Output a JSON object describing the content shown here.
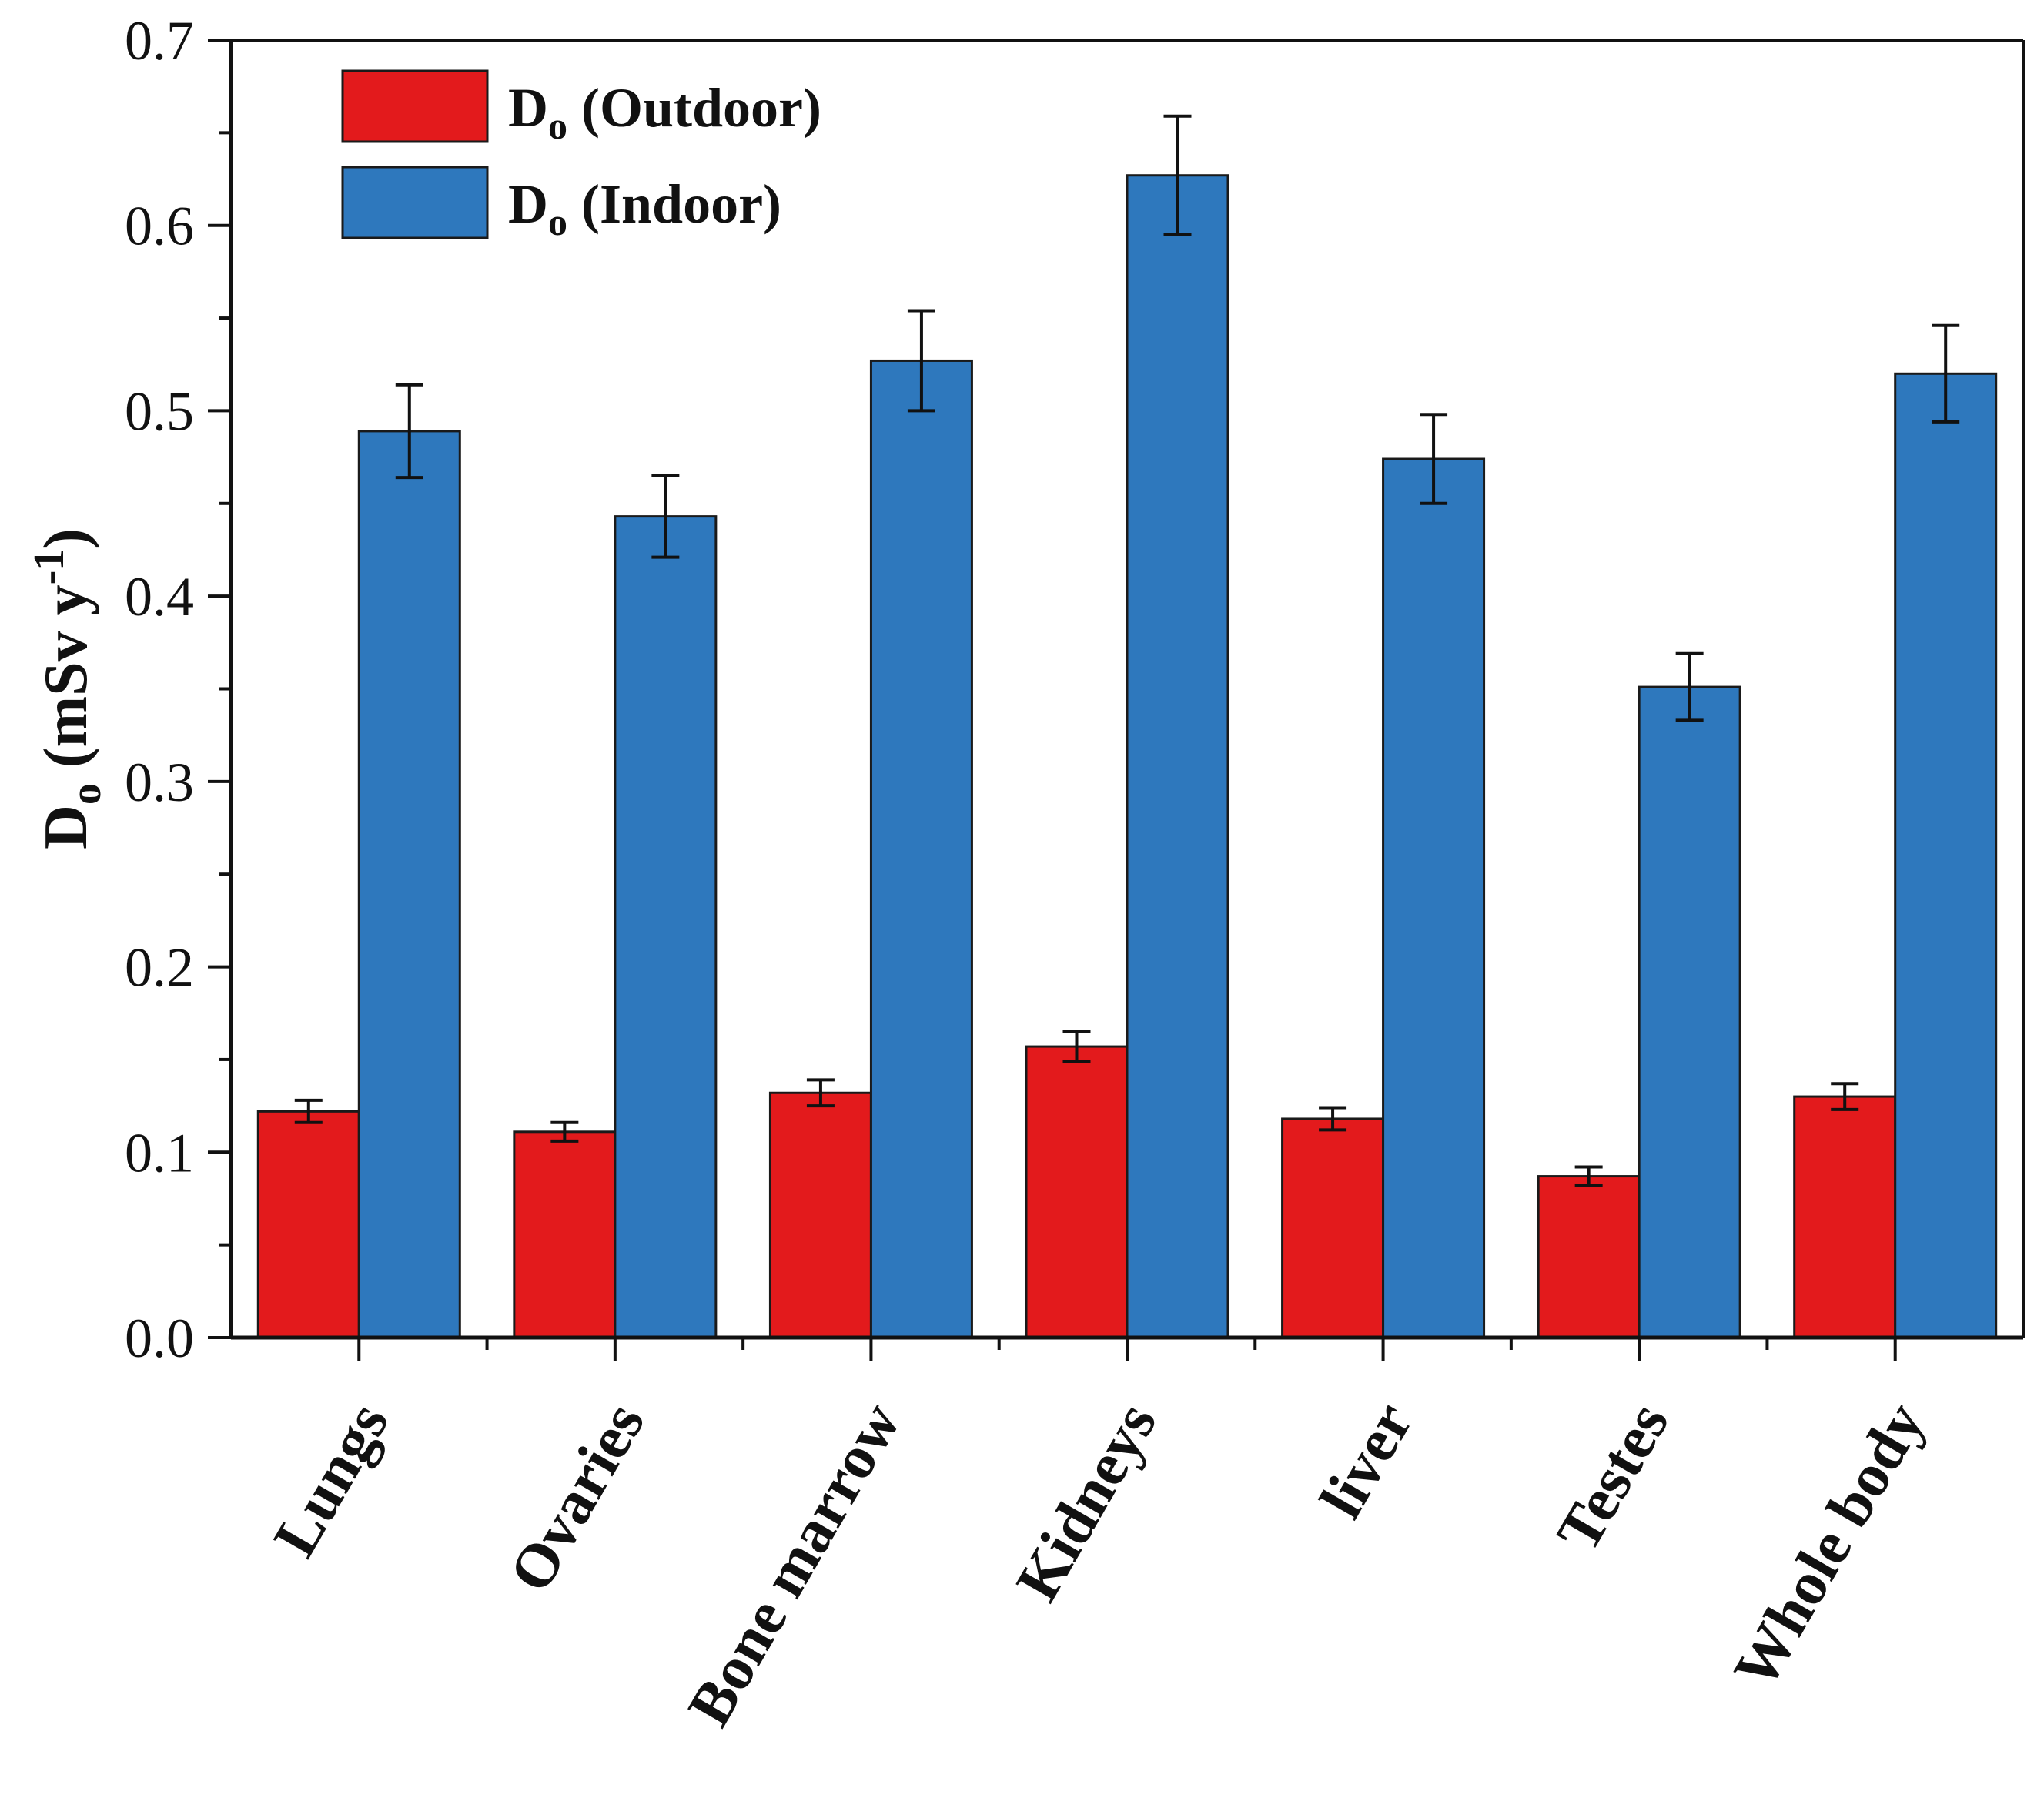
{
  "chart_data": {
    "type": "bar",
    "title": "",
    "categories": [
      "Lungs",
      "Ovaries",
      "Bone marrow",
      "Kidneys",
      "liver",
      "Testes",
      "Whole body"
    ],
    "series": [
      {
        "name": "Do (Outdoor)",
        "legend_main": "D",
        "legend_sub": "o",
        "legend_rest": " (Outdoor)",
        "color": "#e31a1c",
        "values": [
          0.122,
          0.111,
          0.132,
          0.157,
          0.118,
          0.087,
          0.13
        ],
        "errors": [
          0.006,
          0.005,
          0.007,
          0.008,
          0.006,
          0.005,
          0.007
        ]
      },
      {
        "name": "Do (Indoor)",
        "legend_main": "D",
        "legend_sub": "o",
        "legend_rest": " (Indoor)",
        "color": "#2e78bd",
        "values": [
          0.489,
          0.443,
          0.527,
          0.627,
          0.474,
          0.351,
          0.52
        ],
        "errors": [
          0.025,
          0.022,
          0.027,
          0.032,
          0.024,
          0.018,
          0.026
        ]
      }
    ],
    "ylabel_main": "D",
    "ylabel_sub": "o",
    "ylabel_units": " (mSv y",
    "ylabel_sup": "-1",
    "ylabel_close": ")",
    "xlabel": "",
    "ylim": [
      0.0,
      0.7
    ],
    "yticks": [
      "0.0",
      "0.1",
      "0.2",
      "0.3",
      "0.4",
      "0.5",
      "0.6",
      "0.7"
    ],
    "grid": false,
    "legend_position": "top-left"
  }
}
